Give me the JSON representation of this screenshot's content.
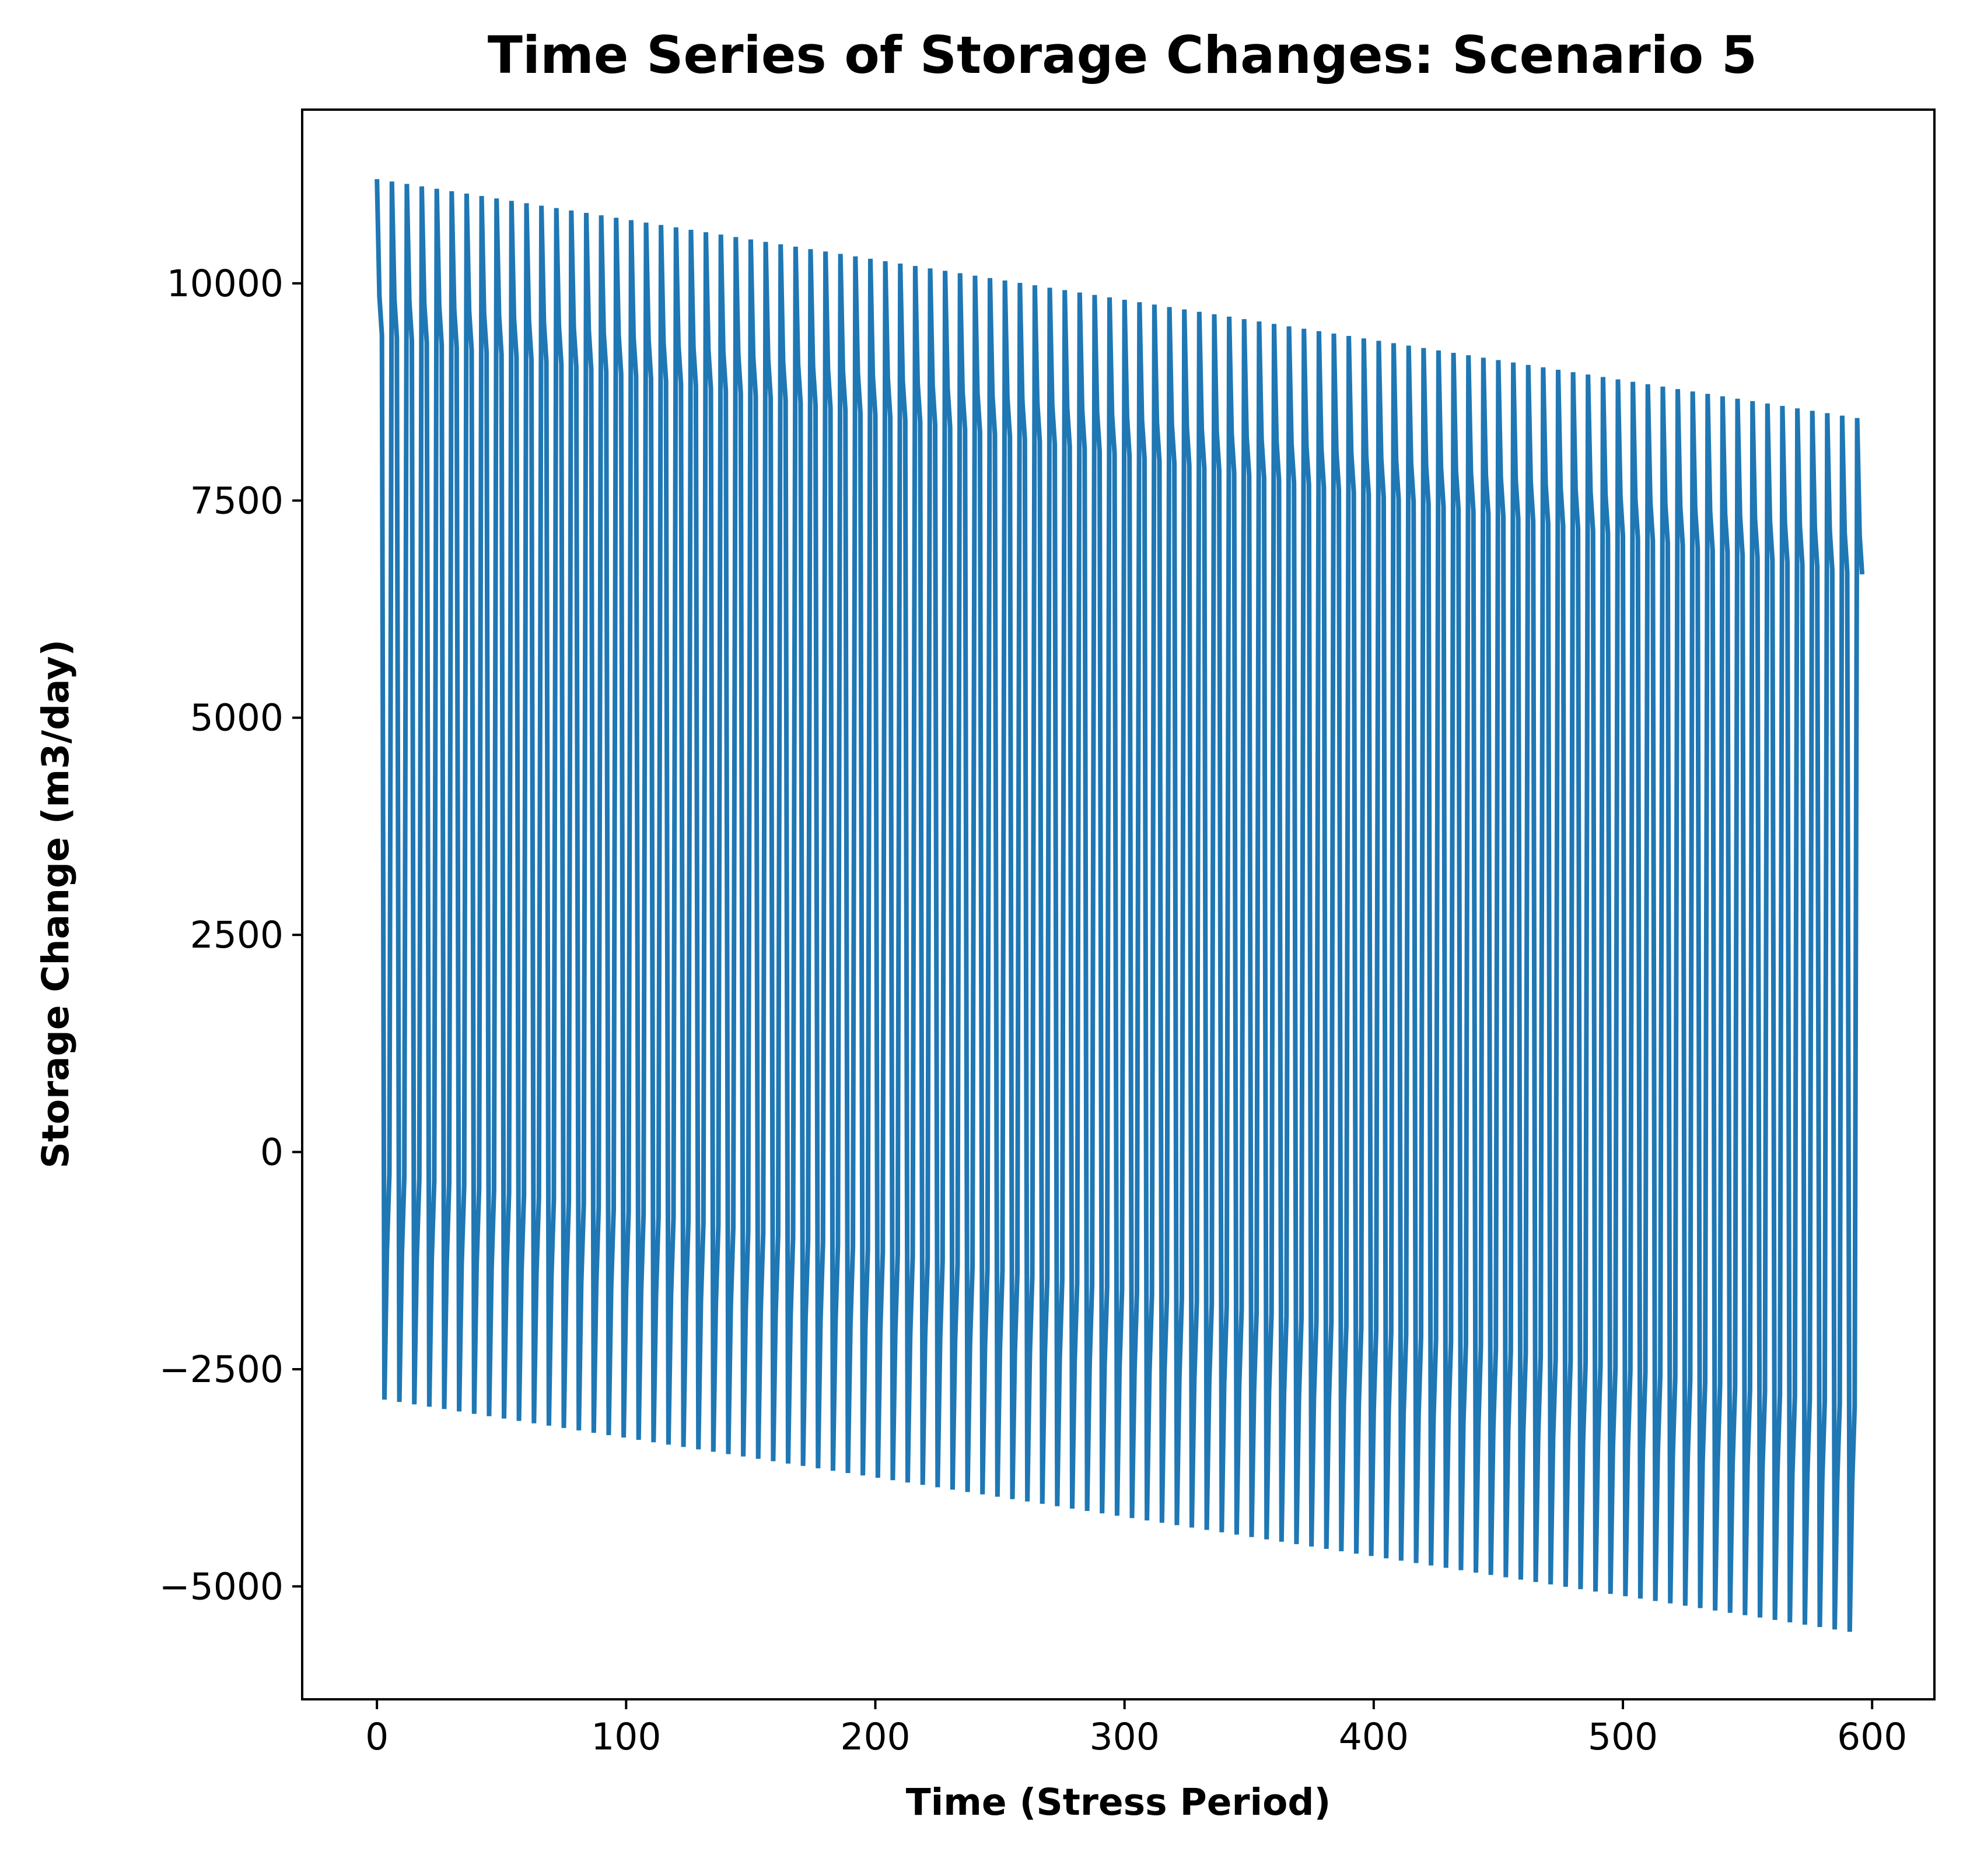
{
  "chart_data": {
    "type": "line",
    "title": "Time Series of Storage Changes: Scenario 5",
    "xlabel": "Time (Stress Period)",
    "ylabel": "Storage Change (m3/day)",
    "xlim": [
      -30,
      625
    ],
    "ylim": [
      -6300,
      12000
    ],
    "xticks": [
      0,
      100,
      200,
      300,
      400,
      500,
      600
    ],
    "xtick_labels": [
      "0",
      "100",
      "200",
      "300",
      "400",
      "500",
      "600"
    ],
    "yticks": [
      -5000,
      -2500,
      0,
      2500,
      5000,
      7500,
      10000
    ],
    "ytick_labels": [
      "−5000",
      "−2500",
      "0",
      "2500",
      "5000",
      "7500",
      "10000"
    ],
    "grid": false,
    "color": "#1f77b4",
    "series": [
      {
        "period": 6,
        "x_start": 0,
        "x_end": 596,
        "cycle_pattern": "each 6-period cycle: peak, slight decline (~-1350 and ~-1800 from peak), sharp drop to trough, partial rise to ~-1100, then return to next peak",
        "peak_start": 11200,
        "peak_end": 8450,
        "trough_start": -2850,
        "trough_end": -5550,
        "final_value": 6650
      }
    ]
  }
}
